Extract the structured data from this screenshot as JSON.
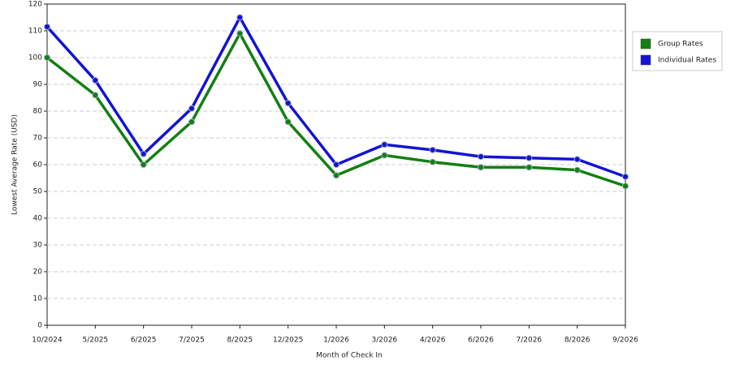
{
  "chart_data": {
    "type": "line",
    "x_label": "Month of Check In",
    "y_label": "Lowest Average Rate (USD)",
    "categories": [
      "10/2024",
      "5/2025",
      "6/2025",
      "7/2025",
      "8/2025",
      "12/2025",
      "1/2026",
      "3/2026",
      "4/2026",
      "6/2026",
      "7/2026",
      "8/2026",
      "9/2026"
    ],
    "series": [
      {
        "name": "Group Rates",
        "color": "#128012",
        "values": [
          100,
          86,
          60,
          76,
          109,
          76,
          56,
          63.5,
          61,
          59,
          59,
          58,
          52
        ]
      },
      {
        "name": "Individual Rates",
        "color": "#1414d2",
        "values": [
          111.5,
          91.5,
          64,
          81,
          115,
          83,
          60,
          67.5,
          65.5,
          63,
          62.5,
          62,
          55.5
        ]
      }
    ],
    "ylim": [
      0,
      120
    ],
    "yticks": [
      0,
      10,
      20,
      30,
      40,
      50,
      60,
      70,
      80,
      90,
      100,
      110,
      120
    ],
    "grid": true,
    "legend": "upper right"
  }
}
